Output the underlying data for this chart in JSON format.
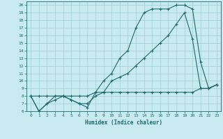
{
  "xlabel": "Humidex (Indice chaleur)",
  "bg_color": "#c8eaf0",
  "line_color": "#1a6b6b",
  "grid_color": "#9dcfcf",
  "xlim": [
    -0.5,
    23.5
  ],
  "ylim": [
    6,
    20.5
  ],
  "yticks": [
    6,
    7,
    8,
    9,
    10,
    11,
    12,
    13,
    14,
    15,
    16,
    17,
    18,
    19,
    20
  ],
  "xticks": [
    0,
    1,
    2,
    3,
    4,
    5,
    6,
    7,
    8,
    9,
    10,
    11,
    12,
    13,
    14,
    15,
    16,
    17,
    18,
    19,
    20,
    21,
    22,
    23
  ],
  "curve1_x": [
    0,
    1,
    2,
    3,
    4,
    5,
    6,
    7,
    8,
    9,
    10,
    11,
    12,
    13,
    14,
    15,
    16,
    17,
    18,
    19,
    20,
    21,
    22,
    23
  ],
  "curve1_y": [
    8,
    6,
    7,
    8,
    8,
    7.5,
    7,
    6.5,
    8.5,
    10,
    11,
    13,
    14,
    17,
    19,
    19.5,
    19.5,
    19.5,
    20,
    20,
    19.5,
    12.5,
    9,
    9.5
  ],
  "curve2_x": [
    0,
    1,
    2,
    3,
    4,
    5,
    6,
    7,
    8,
    9,
    10,
    11,
    12,
    13,
    14,
    15,
    16,
    17,
    18,
    19,
    20,
    21,
    22,
    23
  ],
  "curve2_y": [
    8,
    6,
    7,
    7.5,
    8,
    7.5,
    7,
    7,
    8,
    8.5,
    10,
    10.5,
    11,
    12,
    13,
    14,
    15,
    16,
    17.5,
    19,
    15.5,
    9,
    9,
    9.5
  ],
  "curve3_x": [
    0,
    1,
    2,
    3,
    4,
    5,
    6,
    7,
    8,
    9,
    10,
    11,
    12,
    13,
    14,
    15,
    16,
    17,
    18,
    19,
    20,
    21,
    22,
    23
  ],
  "curve3_y": [
    8,
    8,
    8,
    8,
    8,
    8,
    8,
    8,
    8.5,
    8.5,
    8.5,
    8.5,
    8.5,
    8.5,
    8.5,
    8.5,
    8.5,
    8.5,
    8.5,
    8.5,
    8.5,
    9,
    9,
    9.5
  ]
}
